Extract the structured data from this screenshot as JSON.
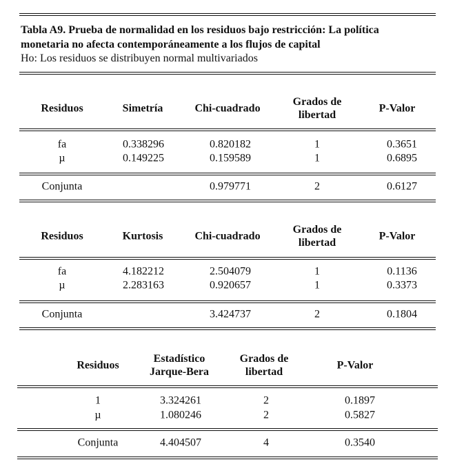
{
  "title_line1": "Tabla A9. Prueba de normalidad en los residuos bajo restricción: La política",
  "title_line2": "monetaria no afecta contemporáneamente a los flujos de capital",
  "subtitle": "Ho: Los residuos se distribuyen normal multivariados",
  "tables": [
    {
      "headers": [
        "Residuos",
        "Simetría",
        "Chi-cuadrado",
        "Grados de\nlibertad",
        "P-Valor"
      ],
      "rows": [
        [
          "fa",
          "0.338296",
          "0.820182",
          "1",
          "0.3651"
        ],
        [
          "µ",
          "0.149225",
          "0.159589",
          "1",
          "0.6895"
        ]
      ],
      "total": [
        "Conjunta",
        "",
        "0.979771",
        "2",
        "0.6127"
      ]
    },
    {
      "headers": [
        "Residuos",
        "Kurtosis",
        "Chi-cuadrado",
        "Grados de\nlibertad",
        "P-Valor"
      ],
      "rows": [
        [
          "fa",
          "4.182212",
          "2.504079",
          "1",
          "0.1136"
        ],
        [
          "µ",
          "2.283163",
          "0.920657",
          "1",
          "0.3373"
        ]
      ],
      "total": [
        "Conjunta",
        "",
        "3.424737",
        "2",
        "0.1804"
      ]
    },
    {
      "headers": [
        "Residuos",
        "Estadístico\nJarque-Bera",
        "Grados de\nlibertad",
        "P-Valor"
      ],
      "rows": [
        [
          "1",
          "3.324261",
          "2",
          "0.1897"
        ],
        [
          "µ",
          "1.080246",
          "2",
          "0.5827"
        ]
      ],
      "total": [
        "Conjunta",
        "4.404507",
        "4",
        "0.3540"
      ]
    }
  ]
}
